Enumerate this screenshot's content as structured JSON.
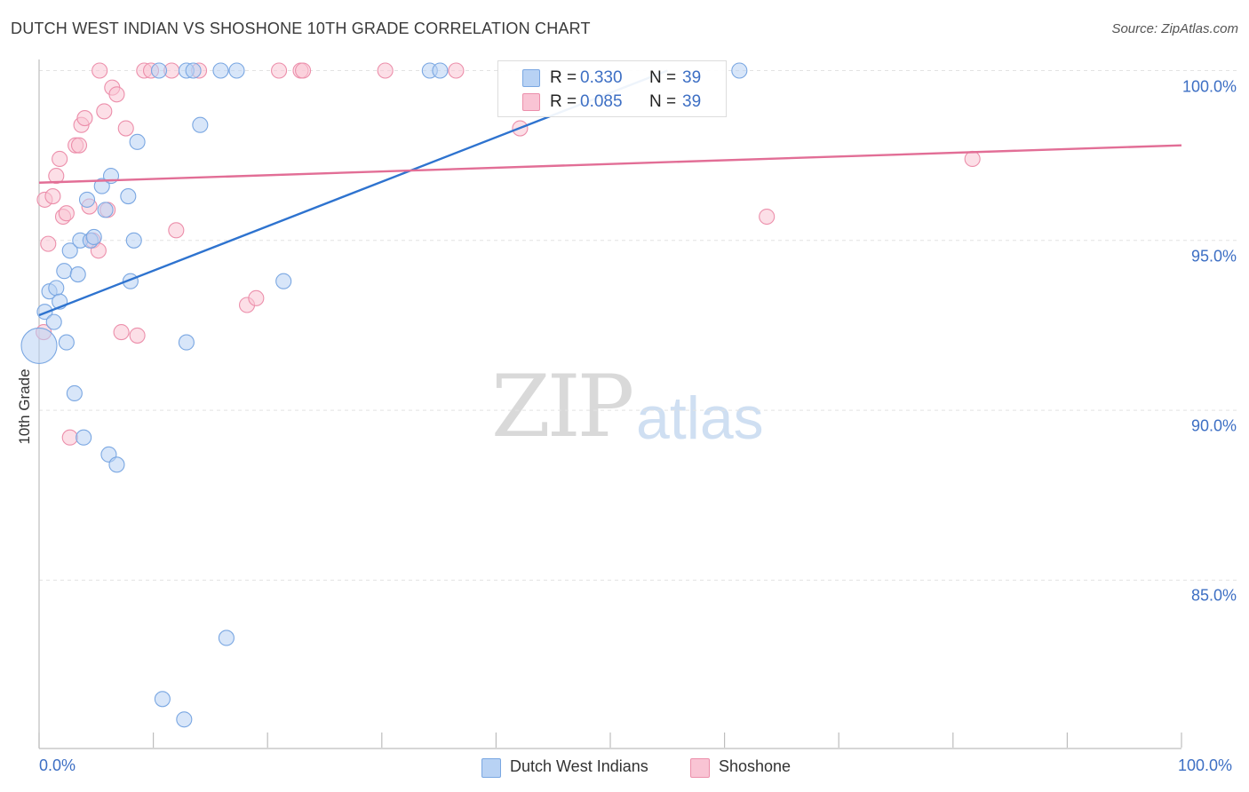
{
  "title": "DUTCH WEST INDIAN VS SHOSHONE 10TH GRADE CORRELATION CHART",
  "source": "Source: ZipAtlas.com",
  "watermark": {
    "zip": "ZIP",
    "atlas": "atlas"
  },
  "colors": {
    "blue_fill": "#b8d2f4",
    "blue_stroke": "#7aa7e2",
    "blue_line": "#2e73cf",
    "pink_fill": "#f9c4d4",
    "pink_stroke": "#ec8fab",
    "pink_line": "#e26e96",
    "axis_text": "#3d6fc4",
    "grid": "#e3e3e3"
  },
  "stats": [
    {
      "r_label": "R =",
      "r_value": "0.330",
      "n_label": "N =",
      "n_value": "39",
      "color": "blue"
    },
    {
      "r_label": "R =",
      "r_value": "0.085",
      "n_label": "N =",
      "n_value": "39",
      "color": "pink"
    }
  ],
  "legend": [
    {
      "label": "Dutch West Indians",
      "color": "blue"
    },
    {
      "label": "Shoshone",
      "color": "pink"
    }
  ],
  "chart_data": {
    "type": "scatter",
    "xlabel": "",
    "ylabel": "10th Grade",
    "xlim": [
      0,
      100
    ],
    "ylim": [
      80.8,
      100.5
    ],
    "x_tick_labels": [
      "0.0%",
      "100.0%"
    ],
    "y_ticks": [
      85,
      90,
      95,
      100
    ],
    "y_tick_labels": [
      "85.0%",
      "90.0%",
      "95.0%",
      "100.0%"
    ],
    "grid": "horizontal dashed",
    "series": [
      {
        "name": "Dutch West Indians",
        "color": "blue",
        "trend": {
          "x": [
            0,
            55
          ],
          "y": [
            92.8,
            100.0
          ]
        },
        "points": [
          {
            "x": 0.0,
            "y": 91.9,
            "big": true
          },
          {
            "x": 0.5,
            "y": 92.9
          },
          {
            "x": 0.9,
            "y": 93.5
          },
          {
            "x": 1.3,
            "y": 92.6
          },
          {
            "x": 1.5,
            "y": 93.6
          },
          {
            "x": 1.8,
            "y": 93.2
          },
          {
            "x": 2.2,
            "y": 94.1
          },
          {
            "x": 2.4,
            "y": 92.0
          },
          {
            "x": 2.7,
            "y": 94.7
          },
          {
            "x": 3.1,
            "y": 90.5
          },
          {
            "x": 3.4,
            "y": 94.0
          },
          {
            "x": 3.6,
            "y": 95.0
          },
          {
            "x": 3.9,
            "y": 89.2
          },
          {
            "x": 4.2,
            "y": 96.2
          },
          {
            "x": 4.5,
            "y": 95.0
          },
          {
            "x": 4.8,
            "y": 95.1
          },
          {
            "x": 5.5,
            "y": 96.6
          },
          {
            "x": 5.8,
            "y": 95.9
          },
          {
            "x": 6.1,
            "y": 88.7
          },
          {
            "x": 6.3,
            "y": 96.9
          },
          {
            "x": 6.8,
            "y": 88.4
          },
          {
            "x": 7.8,
            "y": 96.3
          },
          {
            "x": 8.0,
            "y": 93.8
          },
          {
            "x": 8.3,
            "y": 95.0
          },
          {
            "x": 8.6,
            "y": 97.9
          },
          {
            "x": 10.5,
            "y": 100.0
          },
          {
            "x": 10.8,
            "y": 81.5
          },
          {
            "x": 12.7,
            "y": 80.9
          },
          {
            "x": 12.9,
            "y": 92.0
          },
          {
            "x": 12.9,
            "y": 100.0
          },
          {
            "x": 13.5,
            "y": 100.0
          },
          {
            "x": 14.1,
            "y": 98.4
          },
          {
            "x": 15.9,
            "y": 100.0
          },
          {
            "x": 16.4,
            "y": 83.3
          },
          {
            "x": 17.3,
            "y": 100.0
          },
          {
            "x": 21.4,
            "y": 93.8
          },
          {
            "x": 34.2,
            "y": 100.0
          },
          {
            "x": 35.1,
            "y": 100.0
          },
          {
            "x": 61.3,
            "y": 100.0
          }
        ]
      },
      {
        "name": "Shoshone",
        "color": "pink",
        "trend": {
          "x": [
            0,
            100
          ],
          "y": [
            96.7,
            97.8
          ]
        },
        "points": [
          {
            "x": 0.4,
            "y": 92.3
          },
          {
            "x": 0.5,
            "y": 96.2
          },
          {
            "x": 0.8,
            "y": 94.9
          },
          {
            "x": 1.2,
            "y": 96.3
          },
          {
            "x": 1.5,
            "y": 96.9
          },
          {
            "x": 1.8,
            "y": 97.4
          },
          {
            "x": 2.1,
            "y": 95.7
          },
          {
            "x": 2.4,
            "y": 95.8
          },
          {
            "x": 2.7,
            "y": 89.2
          },
          {
            "x": 3.2,
            "y": 97.8
          },
          {
            "x": 3.5,
            "y": 97.8
          },
          {
            "x": 3.7,
            "y": 98.4
          },
          {
            "x": 4.0,
            "y": 98.6
          },
          {
            "x": 4.4,
            "y": 96.0
          },
          {
            "x": 4.7,
            "y": 95.0
          },
          {
            "x": 5.2,
            "y": 94.7
          },
          {
            "x": 5.3,
            "y": 100.0
          },
          {
            "x": 5.7,
            "y": 98.8
          },
          {
            "x": 6.0,
            "y": 95.9
          },
          {
            "x": 6.4,
            "y": 99.5
          },
          {
            "x": 6.8,
            "y": 99.3
          },
          {
            "x": 7.2,
            "y": 92.3
          },
          {
            "x": 7.6,
            "y": 98.3
          },
          {
            "x": 8.6,
            "y": 92.2
          },
          {
            "x": 9.2,
            "y": 100.0
          },
          {
            "x": 9.8,
            "y": 100.0
          },
          {
            "x": 11.6,
            "y": 100.0
          },
          {
            "x": 12.0,
            "y": 95.3
          },
          {
            "x": 14.0,
            "y": 100.0
          },
          {
            "x": 18.2,
            "y": 93.1
          },
          {
            "x": 19.0,
            "y": 93.3
          },
          {
            "x": 21.0,
            "y": 100.0
          },
          {
            "x": 22.9,
            "y": 100.0
          },
          {
            "x": 23.1,
            "y": 100.0
          },
          {
            "x": 30.3,
            "y": 100.0
          },
          {
            "x": 36.5,
            "y": 100.0
          },
          {
            "x": 42.1,
            "y": 98.3
          },
          {
            "x": 63.7,
            "y": 95.7
          },
          {
            "x": 81.7,
            "y": 97.4
          }
        ]
      }
    ]
  }
}
